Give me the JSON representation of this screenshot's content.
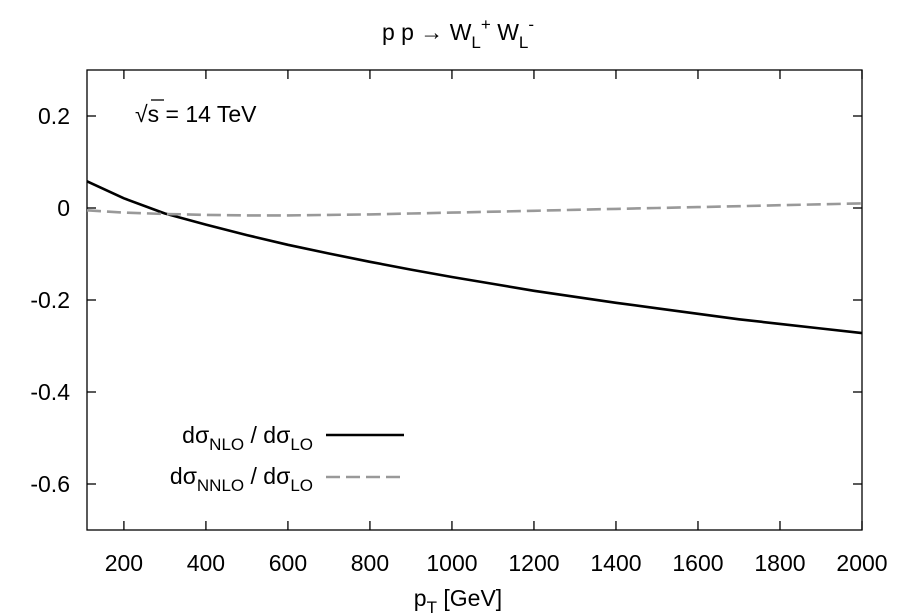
{
  "chart_data": {
    "type": "line",
    "title": "p p → W_L^+ W_L^-",
    "title_parts": {
      "main": "p p  →  W",
      "sub1": "L",
      "sup1": "+",
      "mid": " W",
      "sub2": "L",
      "sup2": "-"
    },
    "annotation": {
      "sqrt": "√",
      "s": "s",
      "rest": " = 14 TeV"
    },
    "xlabel": {
      "main": "p",
      "sub": "T",
      "rest": " [GeV]"
    },
    "ylabel": "",
    "xlim": [
      110,
      2000
    ],
    "ylim": [
      -0.7,
      0.3
    ],
    "xticks": [
      200,
      400,
      600,
      800,
      1000,
      1200,
      1400,
      1600,
      1800,
      2000
    ],
    "xtick_labels": [
      "200",
      "400",
      "600",
      "800",
      "1000",
      "1200",
      "1400",
      "1600",
      "1800",
      "2000"
    ],
    "yticks": [
      0.2,
      0,
      -0.2,
      -0.4,
      -0.6
    ],
    "ytick_labels": [
      "0.2",
      "0",
      "-0.2",
      "-0.4",
      "-0.6"
    ],
    "grid": false,
    "legend_position": "bottom-left",
    "series": [
      {
        "name": "dσ_NLO / dσ_LO",
        "legend": {
          "d1": "dσ",
          "s1": "NLO",
          "mid": " / dσ",
          "s2": "LO"
        },
        "color": "#000000",
        "style": "solid",
        "x": [
          110,
          200,
          300,
          400,
          500,
          600,
          700,
          800,
          900,
          1000,
          1100,
          1200,
          1300,
          1400,
          1500,
          1600,
          1700,
          1800,
          1900,
          2000
        ],
        "y": [
          0.058,
          0.021,
          -0.012,
          -0.036,
          -0.059,
          -0.08,
          -0.099,
          -0.117,
          -0.134,
          -0.15,
          -0.165,
          -0.18,
          -0.193,
          -0.206,
          -0.218,
          -0.23,
          -0.242,
          -0.252,
          -0.262,
          -0.272
        ]
      },
      {
        "name": "dσ_NNLO / dσ_LO",
        "legend": {
          "d1": "dσ",
          "s1": "NNLO",
          "mid": " / dσ",
          "s2": "LO"
        },
        "color": "#999999",
        "style": "dashed",
        "x": [
          110,
          200,
          300,
          400,
          500,
          600,
          700,
          800,
          900,
          1000,
          1100,
          1200,
          1300,
          1400,
          1500,
          1600,
          1700,
          1800,
          1900,
          2000
        ],
        "y": [
          -0.005,
          -0.01,
          -0.013,
          -0.015,
          -0.016,
          -0.016,
          -0.015,
          -0.014,
          -0.012,
          -0.01,
          -0.008,
          -0.006,
          -0.004,
          -0.002,
          0.0,
          0.002,
          0.004,
          0.006,
          0.008,
          0.01
        ]
      }
    ]
  }
}
